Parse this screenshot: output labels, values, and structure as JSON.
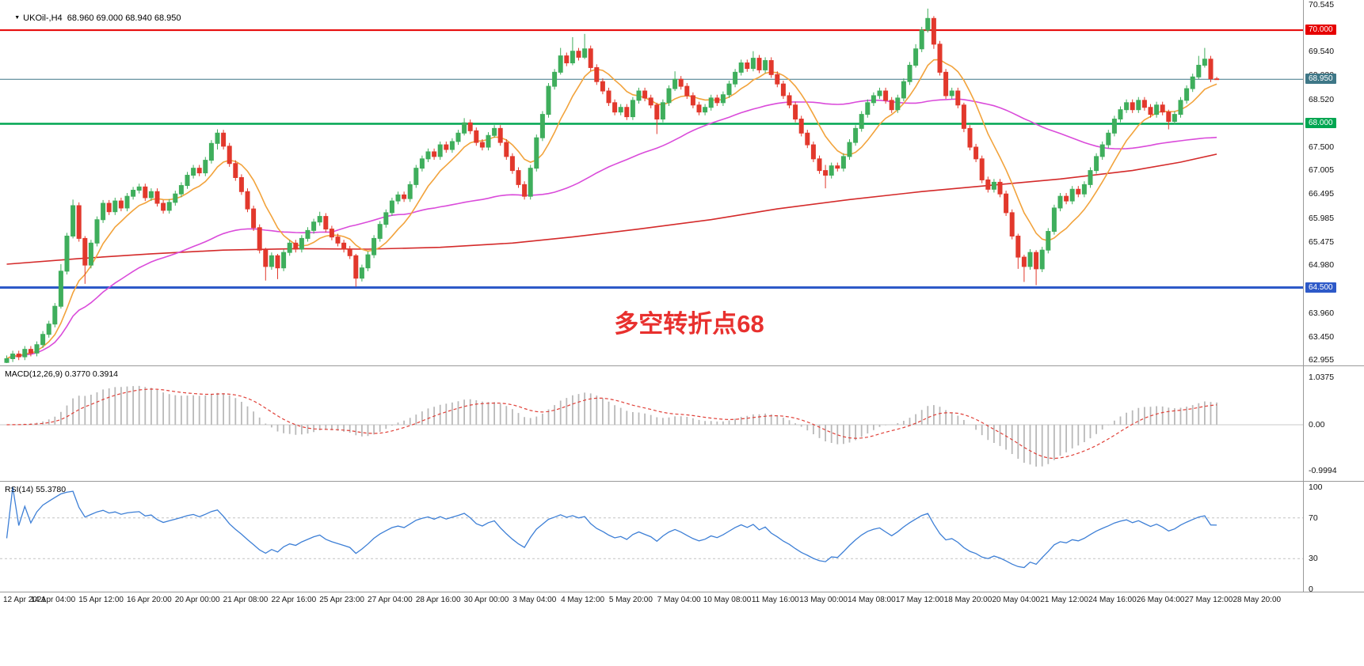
{
  "window": {
    "background": "#FFFFFF"
  },
  "chart_data": [
    {
      "type": "candlestick",
      "title": "UKOil-,H4  68.960 69.000 68.940 68.950",
      "symbol": "UKOil-",
      "timeframe": "H4",
      "quote": {
        "open": 68.96,
        "high": 69.0,
        "low": 68.94,
        "close": 68.95
      },
      "ylim": [
        62.87,
        70.61
      ],
      "y_ticks": [
        70.545,
        69.54,
        69.03,
        68.52,
        67.5,
        67.005,
        66.495,
        65.985,
        65.475,
        64.98,
        63.96,
        63.45,
        62.955
      ],
      "open_first": 62.9,
      "closes": [
        62.98,
        63.08,
        63.02,
        63.18,
        63.1,
        63.28,
        63.5,
        63.72,
        64.1,
        64.85,
        65.6,
        66.25,
        65.55,
        64.98,
        65.45,
        65.95,
        66.3,
        66.12,
        66.35,
        66.2,
        66.45,
        66.58,
        66.65,
        66.42,
        66.55,
        66.3,
        66.15,
        66.32,
        66.5,
        66.68,
        66.9,
        67.05,
        66.95,
        67.22,
        67.58,
        67.8,
        67.52,
        67.15,
        66.85,
        66.55,
        66.18,
        65.78,
        65.3,
        64.95,
        65.18,
        64.92,
        65.25,
        65.45,
        65.32,
        65.55,
        65.72,
        65.9,
        66.02,
        65.75,
        65.58,
        65.45,
        65.32,
        65.18,
        64.7,
        64.92,
        65.2,
        65.55,
        65.85,
        66.1,
        66.35,
        66.48,
        66.4,
        66.7,
        67.05,
        67.25,
        67.4,
        67.3,
        67.55,
        67.45,
        67.62,
        67.8,
        68.02,
        67.85,
        67.6,
        67.5,
        67.75,
        67.9,
        67.6,
        67.3,
        67.0,
        66.7,
        66.45,
        67.05,
        67.7,
        68.2,
        68.8,
        69.1,
        69.45,
        69.3,
        69.55,
        69.42,
        69.6,
        69.2,
        68.9,
        68.7,
        68.45,
        68.25,
        68.35,
        68.15,
        68.5,
        68.7,
        68.55,
        68.4,
        68.1,
        68.45,
        68.75,
        68.95,
        68.8,
        68.6,
        68.4,
        68.25,
        68.35,
        68.55,
        68.45,
        68.62,
        68.85,
        69.1,
        69.3,
        69.18,
        69.4,
        69.15,
        69.35,
        69.05,
        68.85,
        68.6,
        68.4,
        68.1,
        67.8,
        67.55,
        67.25,
        67.0,
        66.9,
        67.1,
        67.05,
        67.3,
        67.6,
        67.9,
        68.2,
        68.45,
        68.6,
        68.7,
        68.5,
        68.3,
        68.55,
        68.9,
        69.25,
        69.6,
        70.0,
        70.25,
        69.7,
        69.1,
        68.6,
        68.7,
        68.4,
        67.9,
        67.5,
        67.25,
        66.8,
        66.6,
        66.75,
        66.5,
        66.1,
        65.6,
        65.15,
        64.95,
        65.25,
        64.9,
        65.3,
        65.7,
        66.2,
        66.45,
        66.35,
        66.6,
        66.5,
        66.7,
        67.0,
        67.3,
        67.55,
        67.8,
        68.1,
        68.3,
        68.45,
        68.3,
        68.5,
        68.35,
        68.2,
        68.4,
        68.25,
        68.05,
        68.2,
        68.5,
        68.75,
        69.0,
        69.25,
        69.38,
        68.96,
        68.95
      ],
      "default_wick": 0.07,
      "wick_overrides": {
        "9": [
          65.0,
          64.05
        ],
        "11": [
          66.38,
          65.55
        ],
        "13": [
          65.6,
          64.58
        ],
        "35": [
          67.88,
          67.45
        ],
        "43": [
          65.35,
          64.65
        ],
        "45": [
          65.22,
          64.68
        ],
        "52": [
          66.12,
          65.82
        ],
        "58": [
          65.22,
          64.52
        ],
        "76": [
          68.12,
          67.75
        ],
        "81": [
          67.97,
          67.7
        ],
        "92": [
          69.62,
          69.05
        ],
        "94": [
          69.85,
          69.25
        ],
        "96": [
          69.92,
          69.38
        ],
        "108": [
          68.45,
          67.78
        ],
        "111": [
          69.12,
          68.7
        ],
        "124": [
          69.55,
          69.12
        ],
        "136": [
          67.12,
          66.62
        ],
        "151": [
          69.7,
          69.2
        ],
        "153": [
          70.46,
          69.95
        ],
        "154": [
          70.3,
          69.6
        ],
        "159": [
          68.45,
          67.82
        ],
        "168": [
          65.65,
          64.9
        ],
        "169": [
          65.2,
          64.62
        ],
        "171": [
          65.3,
          64.55
        ],
        "193": [
          68.3,
          67.88
        ],
        "198": [
          69.45,
          68.95
        ],
        "199": [
          69.62,
          69.2
        ],
        "201": [
          69.0,
          68.94
        ]
      },
      "hlines": [
        {
          "value": 70.0,
          "label": "70.000",
          "color": "#E60000",
          "width": 2
        },
        {
          "value": 68.0,
          "label": "68.000",
          "color": "#00A651",
          "width": 2.5
        },
        {
          "value": 64.5,
          "label": "64.500",
          "color": "#2D59C8",
          "width": 3
        }
      ],
      "current_price": {
        "value": 68.95,
        "label": "68.950",
        "color": "#3E7787"
      },
      "overlays": [
        {
          "name": "ma-fast-orange",
          "style": "computed-lwma",
          "period": 12,
          "color": "#F2A33C"
        },
        {
          "name": "ma-mid-magenta",
          "style": "computed-sma",
          "period": 55,
          "color": "#DA4BDA"
        },
        {
          "name": "ma-slow-red",
          "style": "points",
          "color": "#D42A2A",
          "points": [
            [
              0,
              65.0
            ],
            [
              12,
              65.12
            ],
            [
              24,
              65.22
            ],
            [
              36,
              65.3
            ],
            [
              48,
              65.33
            ],
            [
              60,
              65.32
            ],
            [
              72,
              65.36
            ],
            [
              84,
              65.45
            ],
            [
              94,
              65.58
            ],
            [
              105,
              65.75
            ],
            [
              117,
              65.95
            ],
            [
              128,
              66.18
            ],
            [
              140,
              66.38
            ],
            [
              152,
              66.55
            ],
            [
              163,
              66.68
            ],
            [
              175,
              66.82
            ],
            [
              187,
              67.0
            ],
            [
              195,
              67.18
            ],
            [
              201,
              67.35
            ]
          ]
        }
      ],
      "candle_colors": {
        "up": "#3FAE5C",
        "down": "#E2382C"
      },
      "annotation": {
        "text": "多空转折点68",
        "color": "#E8302E"
      },
      "x_labels": [
        "12 Apr 2021",
        "14 Apr 04:00",
        "15 Apr 12:00",
        "16 Apr 20:00",
        "20 Apr 00:00",
        "21 Apr 08:00",
        "22 Apr 16:00",
        "25 Apr 23:00",
        "27 Apr 04:00",
        "28 Apr 16:00",
        "30 Apr 00:00",
        "3 May 04:00",
        "4 May 12:00",
        "5 May 20:00",
        "7 May 04:00",
        "10 May 08:00",
        "11 May 16:00",
        "13 May 00:00",
        "14 May 08:00",
        "17 May 12:00",
        "18 May 20:00",
        "20 May 04:00",
        "21 May 12:00",
        "24 May 16:00",
        "26 May 04:00",
        "27 May 12:00",
        "28 May 20:00"
      ]
    },
    {
      "type": "macd",
      "label": "MACD(12,26,9) 0.3770 0.3914",
      "params": {
        "fast": 12,
        "slow": 26,
        "signal": 9
      },
      "values": {
        "macd": 0.377,
        "signal": 0.3914
      },
      "y_ticks": [
        {
          "value": 1.0375,
          "label": "1.0375"
        },
        {
          "value": 0,
          "label": "0.00"
        },
        {
          "value": -0.9994,
          "label": "-0.9994"
        }
      ],
      "colors": {
        "histogram": "#B9B9B9",
        "signal_line": "#E04038",
        "zero_line": "#C9C9C9"
      },
      "source": "computed from chart_data.0.closes"
    },
    {
      "type": "rsi",
      "label": "RSI(14) 55.3780",
      "period": 14,
      "value": 55.378,
      "levels": [
        70,
        30
      ],
      "ylim": [
        0,
        100
      ],
      "y_ticks": [
        {
          "value": 100,
          "label": "100"
        },
        {
          "value": 70,
          "label": "70"
        },
        {
          "value": 30,
          "label": "30"
        },
        {
          "value": 0,
          "label": "0"
        }
      ],
      "color": "#3D7FD6"
    }
  ]
}
